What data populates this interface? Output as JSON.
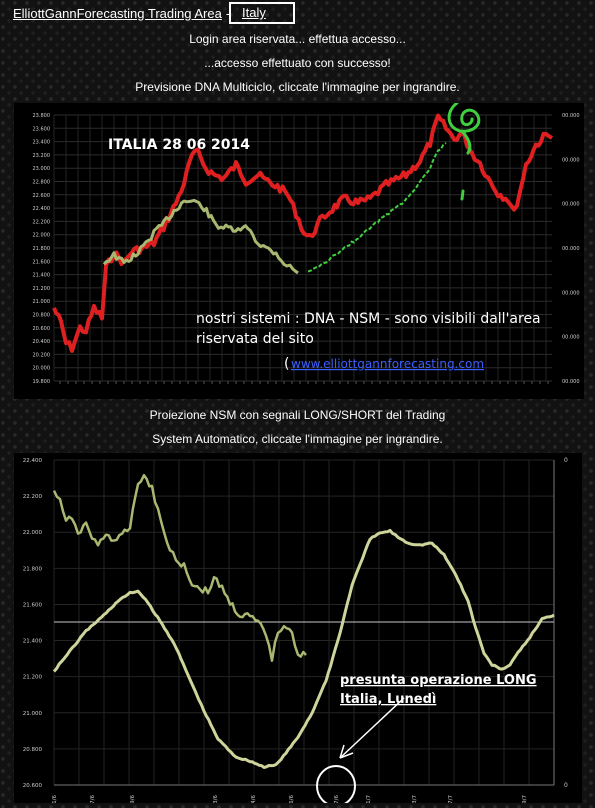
{
  "header": {
    "site_link": "ElliottGannForecasting Trading Area",
    "separator": "-",
    "country": "Italy"
  },
  "messages": {
    "login": "Login area riservata... effettua accesso...",
    "success": "...accesso effettuato con successo!",
    "dna_caption": "Previsione DNA Multiciclo, cliccate l'immagine per ingrandire.",
    "nsm_caption_1": "Proiezione NSM con segnali LONG/SHORT del Trading",
    "nsm_caption_2": "System Automatico, cliccate l'immagine per ingrandire."
  },
  "chart1": {
    "title": "ITALIA 28 06 2014",
    "note_1": "nostri sistemi : DNA - NSM -  sono visibili dall'area",
    "note_2": "riservata del sito",
    "link_open": "(",
    "link": "www.elliottgannforecasting.com",
    "y_ticks": [
      "23.800",
      "23.600",
      "23.400",
      "23.200",
      "23.000",
      "22.800",
      "22.600",
      "22.400",
      "22.200",
      "22.000",
      "21.800",
      "21.600",
      "21.400",
      "21.200",
      "21.000",
      "20.800",
      "20.600",
      "20.400",
      "20.200",
      "20.000",
      "19.800"
    ],
    "right_ticks": [
      "00.000",
      "00.000",
      "00.000",
      "00.000",
      "00.000",
      "00.000",
      "00.000"
    ],
    "colors": {
      "red_series": "#e02020",
      "green_series": "#a8b870",
      "forecast": "#3fcf3f"
    }
  },
  "chart2": {
    "annotation_1": "presunta operazione LONG",
    "annotation_2": "Italia, Lunedì",
    "y_ticks": [
      "22.400",
      "22.200",
      "22.000",
      "21.800",
      "21.600",
      "21.400",
      "21.200",
      "21.000",
      "20.800",
      "20.600"
    ],
    "right_ticks": [
      "0",
      "0"
    ],
    "x_ticks": [
      "11/6",
      "17/6",
      "19/6",
      "23/6",
      "24/6",
      "26/6",
      "27/6",
      "1/7",
      "3/7",
      "7/7",
      "9/7"
    ],
    "colors": {
      "price": "#a8b870",
      "projection": "#cfd49a",
      "annotation_circle": "#ffffff"
    }
  }
}
